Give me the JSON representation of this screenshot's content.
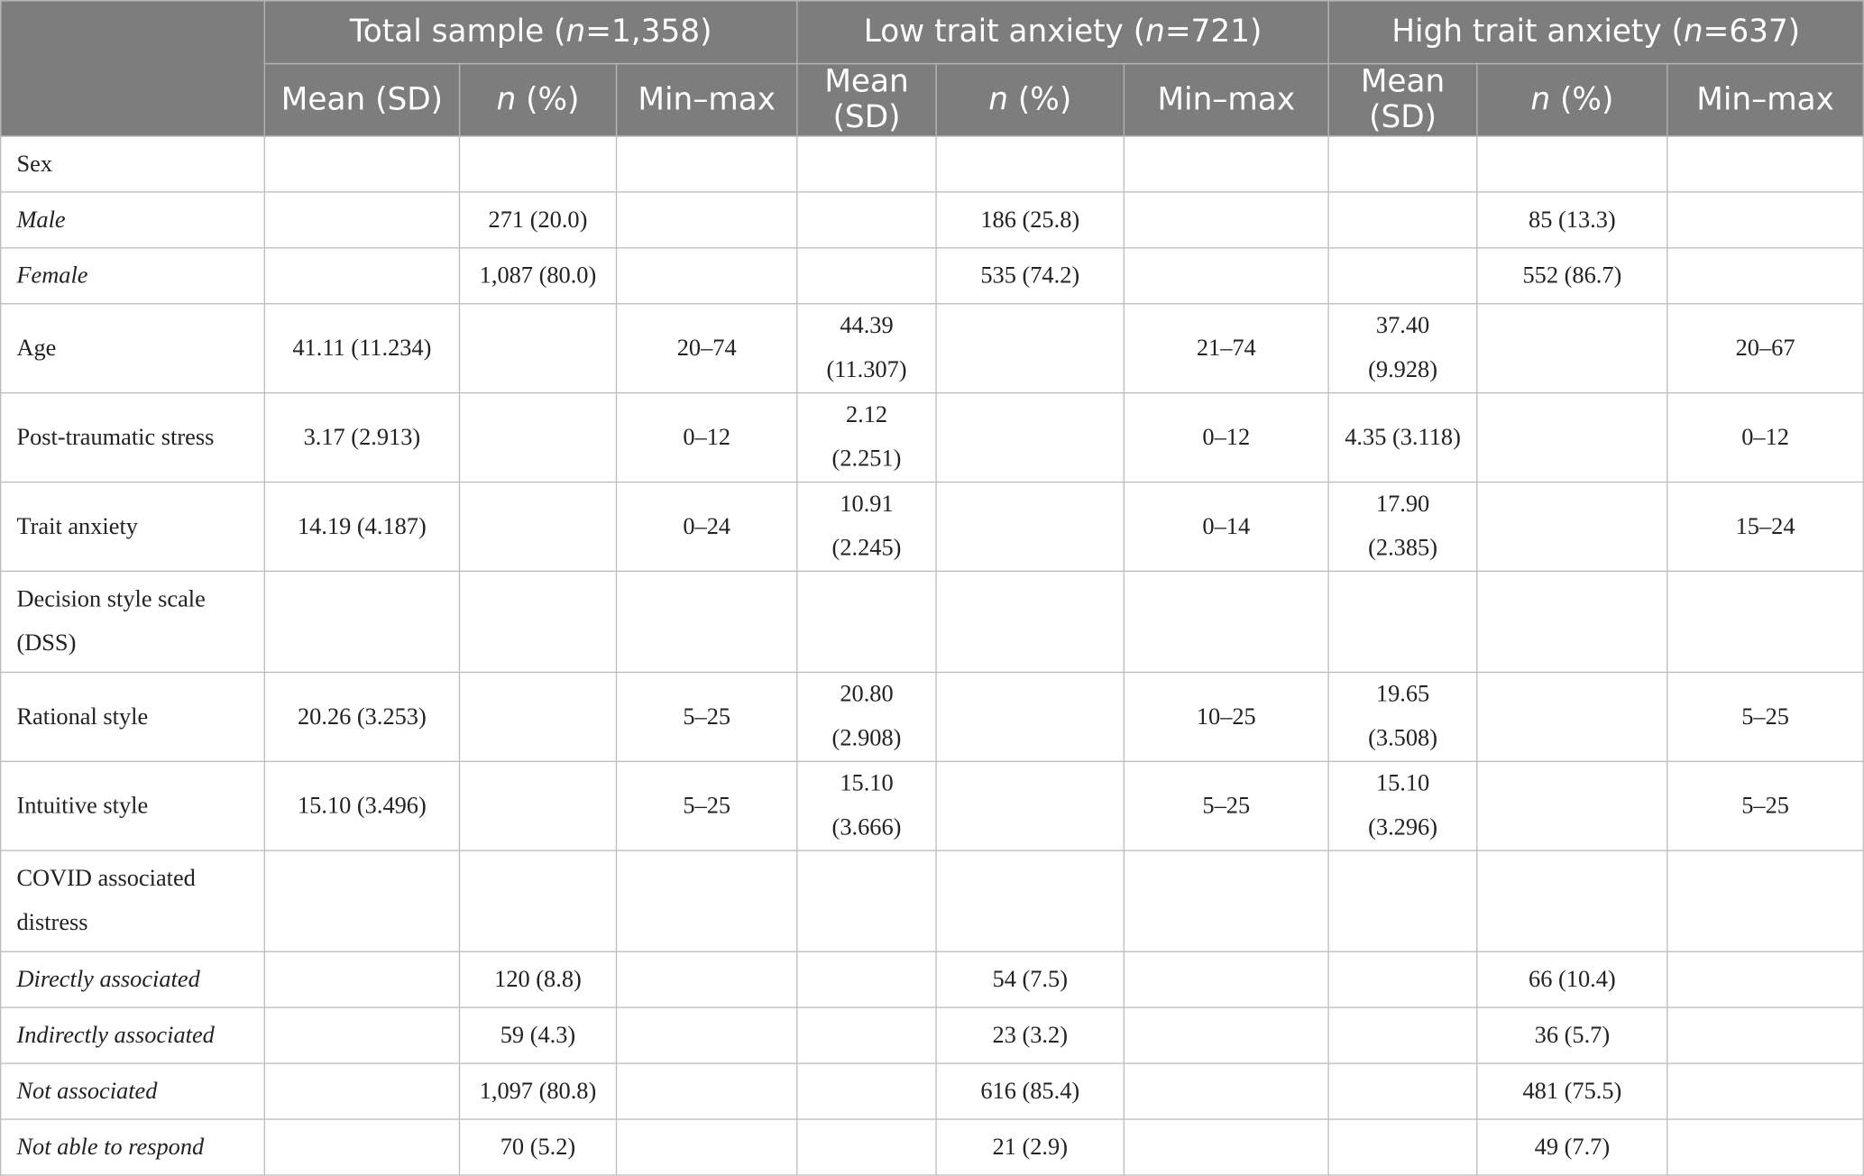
{
  "table": {
    "groups": [
      {
        "name": "Total sample (",
        "n_label": "n",
        "n_value": "=1,358)"
      },
      {
        "name": "Low trait anxiety (",
        "n_label": "n",
        "n_value": "=721)"
      },
      {
        "name": "High trait anxiety (",
        "n_label": "n",
        "n_value": "=637)"
      }
    ],
    "subheaders": {
      "mean_sd": "Mean (SD)",
      "n_pct_n": "n",
      "n_pct_rest": " (%)",
      "min_max": "Min–max"
    },
    "rows": [
      {
        "label": "Sex",
        "italic": false,
        "cells": [
          "",
          "",
          "",
          "",
          "",
          "",
          "",
          "",
          ""
        ]
      },
      {
        "label": "Male",
        "italic": true,
        "cells": [
          "",
          "271 (20.0)",
          "",
          "",
          "186 (25.8)",
          "",
          "",
          "85 (13.3)",
          ""
        ]
      },
      {
        "label": "Female",
        "italic": true,
        "cells": [
          "",
          "1,087 (80.0)",
          "",
          "",
          "535 (74.2)",
          "",
          "",
          "552 (86.7)",
          ""
        ]
      },
      {
        "label": "Age",
        "italic": false,
        "cells": [
          "41.11 (11.234)",
          "",
          "20–74",
          "44.39 (11.307)",
          "",
          "21–74",
          "37.40 (9.928)",
          "",
          "20–67"
        ]
      },
      {
        "label": "Post-traumatic stress",
        "italic": false,
        "cells": [
          "3.17 (2.913)",
          "",
          "0–12",
          "2.12 (2.251)",
          "",
          "0–12",
          "4.35 (3.118)",
          "",
          "0–12"
        ]
      },
      {
        "label": "Trait anxiety",
        "italic": false,
        "cells": [
          "14.19 (4.187)",
          "",
          "0–24",
          "10.91 (2.245)",
          "",
          "0–14",
          "17.90 (2.385)",
          "",
          "15–24"
        ]
      },
      {
        "label": "Decision style scale (DSS)",
        "italic": false,
        "cells": [
          "",
          "",
          "",
          "",
          "",
          "",
          "",
          "",
          ""
        ]
      },
      {
        "label": "Rational style",
        "italic": false,
        "cells": [
          "20.26 (3.253)",
          "",
          "5–25",
          "20.80 (2.908)",
          "",
          "10–25",
          "19.65 (3.508)",
          "",
          "5–25"
        ]
      },
      {
        "label": "Intuitive style",
        "italic": false,
        "cells": [
          "15.10 (3.496)",
          "",
          "5–25",
          "15.10 (3.666)",
          "",
          "5–25",
          "15.10 (3.296)",
          "",
          "5–25"
        ]
      },
      {
        "label": "COVID associated distress",
        "italic": false,
        "cells": [
          "",
          "",
          "",
          "",
          "",
          "",
          "",
          "",
          ""
        ]
      },
      {
        "label": "Directly associated",
        "italic": true,
        "cells": [
          "",
          "120 (8.8)",
          "",
          "",
          "54 (7.5)",
          "",
          "",
          "66 (10.4)",
          ""
        ]
      },
      {
        "label": "Indirectly associated",
        "italic": true,
        "cells": [
          "",
          "59 (4.3)",
          "",
          "",
          "23 (3.2)",
          "",
          "",
          "36 (5.7)",
          ""
        ]
      },
      {
        "label": "Not associated",
        "italic": true,
        "cells": [
          "",
          "1,097 (80.8)",
          "",
          "",
          "616 (85.4)",
          "",
          "",
          "481 (75.5)",
          ""
        ]
      },
      {
        "label": "Not able to respond",
        "italic": true,
        "cells": [
          "",
          "70 (5.2)",
          "",
          "",
          "21 (2.9)",
          "",
          "",
          "49 (7.7)",
          ""
        ]
      }
    ]
  }
}
